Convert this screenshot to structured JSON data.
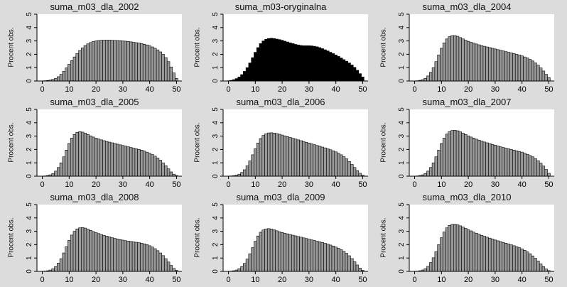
{
  "chart_data": [
    {
      "type": "bar",
      "title": "suma_m03_dla_2002",
      "ylabel": "Procent obs.",
      "xlabel": "",
      "xlim": [
        -2,
        52
      ],
      "ylim": [
        0,
        5
      ],
      "xticks": [
        0,
        10,
        20,
        30,
        40,
        50
      ],
      "yticks": [
        0,
        1,
        2,
        3,
        4,
        5
      ],
      "bar_color": "#999999",
      "x": [
        0,
        1,
        2,
        3,
        4,
        5,
        6,
        7,
        8,
        9,
        10,
        11,
        12,
        13,
        14,
        15,
        16,
        17,
        18,
        19,
        20,
        21,
        22,
        23,
        24,
        25,
        26,
        27,
        28,
        29,
        30,
        31,
        32,
        33,
        34,
        35,
        36,
        37,
        38,
        39,
        40,
        41,
        42,
        43,
        44,
        45,
        46,
        47,
        48,
        49,
        50
      ],
      "values": [
        0.01,
        0.02,
        0.04,
        0.07,
        0.12,
        0.2,
        0.32,
        0.5,
        0.72,
        0.98,
        1.25,
        1.52,
        1.8,
        2.05,
        2.28,
        2.48,
        2.65,
        2.78,
        2.88,
        2.95,
        3.0,
        3.03,
        3.05,
        3.06,
        3.06,
        3.06,
        3.05,
        3.04,
        3.03,
        3.02,
        3.0,
        2.98,
        2.96,
        2.93,
        2.9,
        2.87,
        2.84,
        2.8,
        2.75,
        2.7,
        2.63,
        2.55,
        2.45,
        2.33,
        2.18,
        2.0,
        1.75,
        1.45,
        1.05,
        0.6,
        0.2
      ]
    },
    {
      "type": "bar",
      "title": "suma_m03-oryginalna",
      "ylabel": "Procent obs.",
      "xlabel": "",
      "xlim": [
        -2,
        52
      ],
      "ylim": [
        0,
        5
      ],
      "xticks": [
        0,
        10,
        20,
        30,
        40,
        50
      ],
      "yticks": [
        0,
        1,
        2,
        3,
        4,
        5
      ],
      "bar_color": "#000000",
      "x": [
        0,
        1,
        2,
        3,
        4,
        5,
        6,
        7,
        8,
        9,
        10,
        11,
        12,
        13,
        14,
        15,
        16,
        17,
        18,
        19,
        20,
        21,
        22,
        23,
        24,
        25,
        26,
        27,
        28,
        29,
        30,
        31,
        32,
        33,
        34,
        35,
        36,
        37,
        38,
        39,
        40,
        41,
        42,
        43,
        44,
        45,
        46,
        47,
        48,
        49,
        50
      ],
      "values": [
        0.02,
        0.05,
        0.1,
        0.18,
        0.3,
        0.48,
        0.72,
        1.0,
        1.35,
        1.75,
        2.15,
        2.5,
        2.8,
        3.0,
        3.12,
        3.18,
        3.2,
        3.18,
        3.14,
        3.1,
        3.05,
        2.98,
        2.92,
        2.86,
        2.8,
        2.74,
        2.7,
        2.66,
        2.64,
        2.64,
        2.64,
        2.63,
        2.6,
        2.56,
        2.5,
        2.42,
        2.34,
        2.25,
        2.15,
        2.05,
        1.95,
        1.84,
        1.72,
        1.6,
        1.48,
        1.35,
        1.2,
        1.02,
        0.8,
        0.55,
        0.3
      ]
    },
    {
      "type": "bar",
      "title": "suma_m03_dla_2004",
      "ylabel": "Procent obs.",
      "xlabel": "",
      "xlim": [
        -2,
        52
      ],
      "ylim": [
        0,
        5
      ],
      "xticks": [
        0,
        10,
        20,
        30,
        40,
        50
      ],
      "yticks": [
        0,
        1,
        2,
        3,
        4,
        5
      ],
      "bar_color": "#999999",
      "x": [
        0,
        1,
        2,
        3,
        4,
        5,
        6,
        7,
        8,
        9,
        10,
        11,
        12,
        13,
        14,
        15,
        16,
        17,
        18,
        19,
        20,
        21,
        22,
        23,
        24,
        25,
        26,
        27,
        28,
        29,
        30,
        31,
        32,
        33,
        34,
        35,
        36,
        37,
        38,
        39,
        40,
        41,
        42,
        43,
        44,
        45,
        46,
        47,
        48,
        49,
        50
      ],
      "values": [
        0.01,
        0.02,
        0.05,
        0.1,
        0.2,
        0.38,
        0.65,
        1.0,
        1.45,
        1.95,
        2.45,
        2.85,
        3.15,
        3.32,
        3.4,
        3.4,
        3.35,
        3.25,
        3.15,
        3.05,
        2.97,
        2.9,
        2.83,
        2.77,
        2.71,
        2.65,
        2.6,
        2.55,
        2.5,
        2.45,
        2.4,
        2.35,
        2.3,
        2.25,
        2.2,
        2.15,
        2.1,
        2.05,
        2.0,
        1.94,
        1.88,
        1.8,
        1.72,
        1.62,
        1.5,
        1.35,
        1.18,
        0.98,
        0.75,
        0.5,
        0.25
      ]
    },
    {
      "type": "bar",
      "title": "suma_m03_dla_2005",
      "ylabel": "Procent obs.",
      "xlabel": "",
      "xlim": [
        -2,
        52
      ],
      "ylim": [
        0,
        5
      ],
      "xticks": [
        0,
        10,
        20,
        30,
        40,
        50
      ],
      "yticks": [
        0,
        1,
        2,
        3,
        4,
        5
      ],
      "bar_color": "#999999",
      "x": [
        0,
        1,
        2,
        3,
        4,
        5,
        6,
        7,
        8,
        9,
        10,
        11,
        12,
        13,
        14,
        15,
        16,
        17,
        18,
        19,
        20,
        21,
        22,
        23,
        24,
        25,
        26,
        27,
        28,
        29,
        30,
        31,
        32,
        33,
        34,
        35,
        36,
        37,
        38,
        39,
        40,
        41,
        42,
        43,
        44,
        45,
        46,
        47,
        48,
        49,
        50
      ],
      "values": [
        0.01,
        0.02,
        0.05,
        0.1,
        0.2,
        0.38,
        0.65,
        1.0,
        1.45,
        1.95,
        2.45,
        2.85,
        3.12,
        3.28,
        3.33,
        3.3,
        3.22,
        3.12,
        3.02,
        2.93,
        2.85,
        2.78,
        2.72,
        2.66,
        2.6,
        2.55,
        2.5,
        2.45,
        2.4,
        2.35,
        2.3,
        2.25,
        2.2,
        2.15,
        2.1,
        2.05,
        2.0,
        1.95,
        1.88,
        1.8,
        1.72,
        1.62,
        1.5,
        1.36,
        1.2,
        1.0,
        0.78,
        0.55,
        0.32,
        0.15,
        0.05
      ]
    },
    {
      "type": "bar",
      "title": "suma_m03_dla_2006",
      "ylabel": "Procent obs.",
      "xlabel": "",
      "xlim": [
        -2,
        52
      ],
      "ylim": [
        0,
        5
      ],
      "xticks": [
        0,
        10,
        20,
        30,
        40,
        50
      ],
      "yticks": [
        0,
        1,
        2,
        3,
        4,
        5
      ],
      "bar_color": "#999999",
      "x": [
        0,
        1,
        2,
        3,
        4,
        5,
        6,
        7,
        8,
        9,
        10,
        11,
        12,
        13,
        14,
        15,
        16,
        17,
        18,
        19,
        20,
        21,
        22,
        23,
        24,
        25,
        26,
        27,
        28,
        29,
        30,
        31,
        32,
        33,
        34,
        35,
        36,
        37,
        38,
        39,
        40,
        41,
        42,
        43,
        44,
        45,
        46,
        47,
        48,
        49,
        50
      ],
      "values": [
        0.01,
        0.02,
        0.04,
        0.08,
        0.15,
        0.28,
        0.48,
        0.78,
        1.15,
        1.6,
        2.05,
        2.48,
        2.82,
        3.05,
        3.18,
        3.24,
        3.25,
        3.23,
        3.19,
        3.14,
        3.08,
        3.02,
        2.96,
        2.9,
        2.84,
        2.78,
        2.72,
        2.66,
        2.6,
        2.54,
        2.48,
        2.42,
        2.36,
        2.3,
        2.24,
        2.18,
        2.12,
        2.05,
        1.98,
        1.9,
        1.82,
        1.72,
        1.6,
        1.46,
        1.3,
        1.1,
        0.88,
        0.65,
        0.42,
        0.22,
        0.08
      ]
    },
    {
      "type": "bar",
      "title": "suma_m03_dla_2007",
      "ylabel": "Procent obs.",
      "xlabel": "",
      "xlim": [
        -2,
        52
      ],
      "ylim": [
        0,
        5
      ],
      "xticks": [
        0,
        10,
        20,
        30,
        40,
        50
      ],
      "yticks": [
        0,
        1,
        2,
        3,
        4,
        5
      ],
      "bar_color": "#999999",
      "x": [
        0,
        1,
        2,
        3,
        4,
        5,
        6,
        7,
        8,
        9,
        10,
        11,
        12,
        13,
        14,
        15,
        16,
        17,
        18,
        19,
        20,
        21,
        22,
        23,
        24,
        25,
        26,
        27,
        28,
        29,
        30,
        31,
        32,
        33,
        34,
        35,
        36,
        37,
        38,
        39,
        40,
        41,
        42,
        43,
        44,
        45,
        46,
        47,
        48,
        49,
        50
      ],
      "values": [
        0.01,
        0.02,
        0.05,
        0.1,
        0.2,
        0.38,
        0.65,
        1.0,
        1.45,
        1.95,
        2.45,
        2.85,
        3.15,
        3.33,
        3.42,
        3.44,
        3.4,
        3.32,
        3.22,
        3.12,
        3.02,
        2.93,
        2.85,
        2.77,
        2.7,
        2.63,
        2.56,
        2.5,
        2.44,
        2.38,
        2.32,
        2.26,
        2.2,
        2.15,
        2.1,
        2.05,
        2.0,
        1.95,
        1.9,
        1.85,
        1.8,
        1.72,
        1.64,
        1.55,
        1.45,
        1.32,
        1.16,
        0.98,
        0.76,
        0.5,
        0.22
      ]
    },
    {
      "type": "bar",
      "title": "suma_m03_dla_2008",
      "ylabel": "Procent obs.",
      "xlabel": "",
      "xlim": [
        -2,
        52
      ],
      "ylim": [
        0,
        5
      ],
      "xticks": [
        0,
        10,
        20,
        30,
        40,
        50
      ],
      "yticks": [
        0,
        1,
        2,
        3,
        4,
        5
      ],
      "bar_color": "#999999",
      "x": [
        0,
        1,
        2,
        3,
        4,
        5,
        6,
        7,
        8,
        9,
        10,
        11,
        12,
        13,
        14,
        15,
        16,
        17,
        18,
        19,
        20,
        21,
        22,
        23,
        24,
        25,
        26,
        27,
        28,
        29,
        30,
        31,
        32,
        33,
        34,
        35,
        36,
        37,
        38,
        39,
        40,
        41,
        42,
        43,
        44,
        45,
        46,
        47,
        48,
        49,
        50
      ],
      "values": [
        0.01,
        0.02,
        0.05,
        0.1,
        0.2,
        0.36,
        0.62,
        0.95,
        1.38,
        1.85,
        2.32,
        2.72,
        3.0,
        3.18,
        3.26,
        3.28,
        3.24,
        3.16,
        3.07,
        2.98,
        2.9,
        2.83,
        2.76,
        2.7,
        2.64,
        2.58,
        2.52,
        2.47,
        2.42,
        2.38,
        2.34,
        2.3,
        2.27,
        2.24,
        2.21,
        2.18,
        2.15,
        2.11,
        2.06,
        2.0,
        1.92,
        1.82,
        1.7,
        1.55,
        1.38,
        1.18,
        0.95,
        0.7,
        0.45,
        0.22,
        0.08
      ]
    },
    {
      "type": "bar",
      "title": "suma_m03_dla_2009",
      "ylabel": "Procent obs.",
      "xlabel": "",
      "xlim": [
        -2,
        52
      ],
      "ylim": [
        0,
        5
      ],
      "xticks": [
        0,
        10,
        20,
        30,
        40,
        50
      ],
      "yticks": [
        0,
        1,
        2,
        3,
        4,
        5
      ],
      "bar_color": "#999999",
      "x": [
        0,
        1,
        2,
        3,
        4,
        5,
        6,
        7,
        8,
        9,
        10,
        11,
        12,
        13,
        14,
        15,
        16,
        17,
        18,
        19,
        20,
        21,
        22,
        23,
        24,
        25,
        26,
        27,
        28,
        29,
        30,
        31,
        32,
        33,
        34,
        35,
        36,
        37,
        38,
        39,
        40,
        41,
        42,
        43,
        44,
        45,
        46,
        47,
        48,
        49,
        50
      ],
      "values": [
        0.01,
        0.02,
        0.05,
        0.1,
        0.2,
        0.36,
        0.6,
        0.92,
        1.32,
        1.78,
        2.25,
        2.65,
        2.93,
        3.1,
        3.18,
        3.2,
        3.17,
        3.11,
        3.04,
        2.97,
        2.91,
        2.86,
        2.81,
        2.76,
        2.71,
        2.66,
        2.61,
        2.56,
        2.51,
        2.46,
        2.41,
        2.36,
        2.31,
        2.26,
        2.21,
        2.16,
        2.1,
        2.04,
        1.97,
        1.9,
        1.82,
        1.73,
        1.62,
        1.5,
        1.35,
        1.17,
        0.96,
        0.72,
        0.48,
        0.25,
        0.08
      ]
    },
    {
      "type": "bar",
      "title": "suma_m03_dla_2010",
      "ylabel": "Procent obs.",
      "xlabel": "",
      "xlim": [
        -2,
        52
      ],
      "ylim": [
        0,
        5
      ],
      "xticks": [
        0,
        10,
        20,
        30,
        40,
        50
      ],
      "yticks": [
        0,
        1,
        2,
        3,
        4,
        5
      ],
      "bar_color": "#999999",
      "x": [
        0,
        1,
        2,
        3,
        4,
        5,
        6,
        7,
        8,
        9,
        10,
        11,
        12,
        13,
        14,
        15,
        16,
        17,
        18,
        19,
        20,
        21,
        22,
        23,
        24,
        25,
        26,
        27,
        28,
        29,
        30,
        31,
        32,
        33,
        34,
        35,
        36,
        37,
        38,
        39,
        40,
        41,
        42,
        43,
        44,
        45,
        46,
        47,
        48,
        49,
        50
      ],
      "values": [
        0.01,
        0.02,
        0.05,
        0.1,
        0.2,
        0.38,
        0.66,
        1.02,
        1.48,
        2.0,
        2.52,
        2.95,
        3.26,
        3.44,
        3.52,
        3.53,
        3.49,
        3.41,
        3.32,
        3.22,
        3.12,
        3.03,
        2.94,
        2.86,
        2.78,
        2.7,
        2.63,
        2.56,
        2.49,
        2.42,
        2.35,
        2.29,
        2.23,
        2.17,
        2.11,
        2.05,
        1.99,
        1.92,
        1.85,
        1.77,
        1.68,
        1.58,
        1.46,
        1.32,
        1.16,
        0.98,
        0.78,
        0.56,
        0.35,
        0.18,
        0.06
      ]
    }
  ]
}
